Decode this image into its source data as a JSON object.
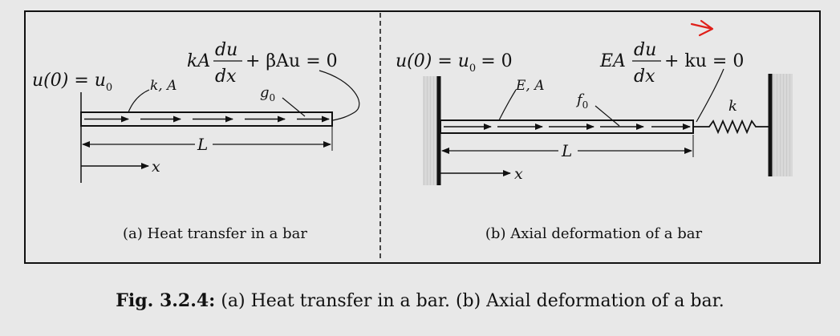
{
  "panel_a": {
    "boundary_condition": "u(0) = u",
    "bc_subscript": "0",
    "material_label": "k, A",
    "eq_prefix": "kA",
    "frac_num": "du",
    "frac_den": "dx",
    "eq_suffix": "+ βAu = 0",
    "source_label": "g",
    "source_subscript": "0",
    "length_label": "L",
    "axis_label": "x",
    "subcaption": "(a) Heat transfer in a bar"
  },
  "panel_b": {
    "boundary_condition": "u(0) = u",
    "bc_subscript": "0",
    "bc_suffix": "= 0",
    "material_label": "E, A",
    "eq_prefix": "EA",
    "frac_num": "du",
    "frac_den": "dx",
    "eq_suffix": "+ ku = 0",
    "source_label": "f",
    "source_subscript": "0",
    "spring_label": "k",
    "length_label": "L",
    "axis_label": "x",
    "subcaption": "(b) Axial deformation of a bar"
  },
  "caption": {
    "label": "Fig. 3.2.4:",
    "text": "(a) Heat transfer in a bar. (b) Axial deformation of a bar."
  },
  "colors": {
    "annotation": "#e0201a",
    "ink": "#111111",
    "wall": "#cfcfcf"
  }
}
